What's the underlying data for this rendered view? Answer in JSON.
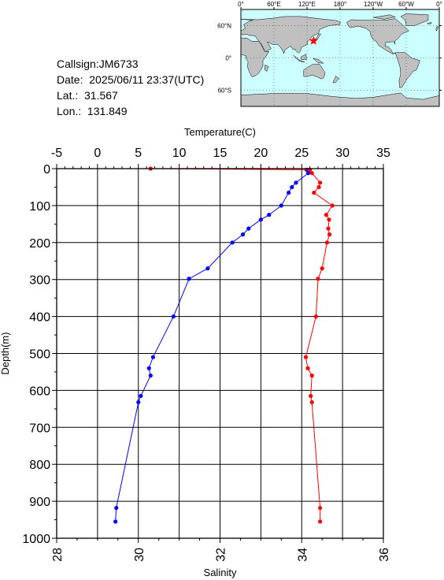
{
  "station": {
    "callsign_line": "Callsign:JM6733",
    "date_line": "Date:  2025/06/11 23:37(UTC)",
    "lat_line": "Lat.:  31.567",
    "lon_line": "Lon.:  131.849",
    "lat": 31.567,
    "lon": 131.849
  },
  "map": {
    "lon_tick_labels": [
      "0°",
      "60°E",
      "120°E",
      "180°",
      "120°W",
      "60°W",
      "0°"
    ],
    "lat_tick_labels": [
      "60°N",
      "0°",
      "60°S"
    ],
    "ocean_color": "#ccffff",
    "land_color": "#c0c0c0",
    "marker_color": "#ff0000"
  },
  "chart_data": {
    "type": "line",
    "temperature_axis": {
      "label": "Temperature(C)",
      "range": [
        -5,
        35
      ],
      "ticks": [
        "-5",
        "0",
        "5",
        "10",
        "15",
        "20",
        "25",
        "30",
        "35"
      ]
    },
    "salinity_axis": {
      "label": "Salinity",
      "range": [
        28,
        36
      ],
      "ticks": [
        "28",
        "30",
        "32",
        "34",
        "36"
      ]
    },
    "depth_axis": {
      "label": "Depth(m)",
      "range": [
        0,
        1000
      ],
      "ticks": [
        "0",
        "100",
        "200",
        "300",
        "400",
        "500",
        "600",
        "700",
        "800",
        "900",
        "1000"
      ]
    },
    "grid": true,
    "series": [
      {
        "color": "#0000ff",
        "axis": "temperature",
        "points": [
          {
            "depth": 3,
            "value": 25.6
          },
          {
            "depth": 12,
            "value": 25.8
          },
          {
            "depth": 38,
            "value": 24.3
          },
          {
            "depth": 50,
            "value": 23.8
          },
          {
            "depth": 65,
            "value": 23.4
          },
          {
            "depth": 100,
            "value": 22.5
          },
          {
            "depth": 125,
            "value": 21.0
          },
          {
            "depth": 138,
            "value": 20.0
          },
          {
            "depth": 162,
            "value": 18.5
          },
          {
            "depth": 178,
            "value": 17.8
          },
          {
            "depth": 200,
            "value": 16.5
          },
          {
            "depth": 270,
            "value": 13.5
          },
          {
            "depth": 298,
            "value": 11.2
          },
          {
            "depth": 400,
            "value": 9.3
          },
          {
            "depth": 510,
            "value": 6.8
          },
          {
            "depth": 540,
            "value": 6.3
          },
          {
            "depth": 560,
            "value": 6.5
          },
          {
            "depth": 615,
            "value": 5.3
          },
          {
            "depth": 632,
            "value": 5.0
          },
          {
            "depth": 918,
            "value": 2.3
          },
          {
            "depth": 955,
            "value": 2.2
          }
        ]
      },
      {
        "color": "#ff0000",
        "axis": "salinity",
        "points": [
          {
            "depth": 0,
            "value": 30.3
          },
          {
            "depth": 3,
            "value": 34.2
          },
          {
            "depth": 12,
            "value": 34.25
          },
          {
            "depth": 38,
            "value": 34.45
          },
          {
            "depth": 50,
            "value": 34.42
          },
          {
            "depth": 65,
            "value": 34.3
          },
          {
            "depth": 100,
            "value": 34.75
          },
          {
            "depth": 125,
            "value": 34.6
          },
          {
            "depth": 138,
            "value": 34.67
          },
          {
            "depth": 162,
            "value": 34.65
          },
          {
            "depth": 178,
            "value": 34.68
          },
          {
            "depth": 200,
            "value": 34.62
          },
          {
            "depth": 270,
            "value": 34.5
          },
          {
            "depth": 298,
            "value": 34.4
          },
          {
            "depth": 400,
            "value": 34.35
          },
          {
            "depth": 510,
            "value": 34.1
          },
          {
            "depth": 540,
            "value": 34.15
          },
          {
            "depth": 560,
            "value": 34.25
          },
          {
            "depth": 615,
            "value": 34.22
          },
          {
            "depth": 632,
            "value": 34.25
          },
          {
            "depth": 918,
            "value": 34.45
          },
          {
            "depth": 955,
            "value": 34.45
          }
        ]
      }
    ]
  }
}
